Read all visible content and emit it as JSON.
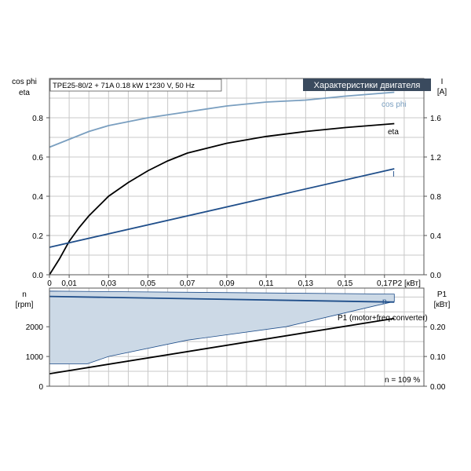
{
  "colors": {
    "cos_phi": "#7a9fc0",
    "eta": "#000000",
    "current": "#1f4e8a",
    "speed": "#1f4e8a",
    "p1": "#000000",
    "speed_band_fill": "#ccd9e6",
    "speed_band_edge": "#1f4e8a",
    "grid": "#c8c8c8",
    "title_box_bg": "#3a4a5e",
    "title_box_text": "#ffffff"
  },
  "chart_data": [
    {
      "type": "line",
      "panel": "top",
      "title": "Характеристики двигателя",
      "subtitle": "TPE25-80/2 + 71A   0.18 kW   1*230 V, 50 Hz",
      "xlabel": "P2 [кВт]",
      "ylabel_left": [
        "cos phi",
        "eta"
      ],
      "ylabel_right": [
        "I",
        "[A]"
      ],
      "xlim": [
        0,
        0.19
      ],
      "ylim_left": [
        0,
        1
      ],
      "ylim_right": [
        0,
        2
      ],
      "x_ticks": [
        "0",
        "0,01",
        "0,03",
        "0,05",
        "0,07",
        "0,09",
        "0,11",
        "0,13",
        "0,15",
        "0,17"
      ],
      "x_tick_values": [
        0,
        0.01,
        0.03,
        0.05,
        0.07,
        0.09,
        0.11,
        0.13,
        0.15,
        0.17
      ],
      "y_ticks_left": [
        "0.0",
        "0.2",
        "0.4",
        "0.6",
        "0.8"
      ],
      "y_tick_values_left": [
        0,
        0.2,
        0.4,
        0.6,
        0.8
      ],
      "y_ticks_right": [
        "0.0",
        "0.4",
        "0.8",
        "1.2",
        "1.6"
      ],
      "y_tick_values_right": [
        0,
        0.4,
        0.8,
        1.2,
        1.6
      ],
      "grid": true,
      "series": [
        {
          "name": "cos phi",
          "axis": "left",
          "x": [
            0,
            0.005,
            0.01,
            0.02,
            0.03,
            0.04,
            0.05,
            0.07,
            0.09,
            0.11,
            0.13,
            0.15,
            0.175
          ],
          "y": [
            0.65,
            0.67,
            0.69,
            0.73,
            0.76,
            0.78,
            0.8,
            0.83,
            0.86,
            0.88,
            0.89,
            0.91,
            0.93
          ]
        },
        {
          "name": "eta",
          "axis": "left",
          "x": [
            0.0,
            0.005,
            0.01,
            0.015,
            0.02,
            0.03,
            0.04,
            0.05,
            0.06,
            0.07,
            0.09,
            0.11,
            0.13,
            0.15,
            0.175
          ],
          "y": [
            0.0,
            0.08,
            0.17,
            0.24,
            0.3,
            0.4,
            0.47,
            0.53,
            0.58,
            0.62,
            0.67,
            0.705,
            0.73,
            0.75,
            0.77
          ]
        },
        {
          "name": "I",
          "axis": "right",
          "x": [
            0,
            0.175
          ],
          "y": [
            0.28,
            1.08
          ]
        }
      ]
    },
    {
      "type": "line",
      "panel": "bottom",
      "xlim": [
        0,
        0.19
      ],
      "ylabel_left": [
        "n",
        "[rpm]"
      ],
      "ylabel_right": [
        "P1",
        "[кВт]"
      ],
      "ylim_left": [
        0,
        3300
      ],
      "ylim_right": [
        0,
        0.33
      ],
      "y_ticks_left": [
        "0",
        "1000",
        "2000"
      ],
      "y_tick_values_left": [
        0,
        1000,
        2000
      ],
      "y_ticks_right": [
        "0.00",
        "0.10",
        "0.20"
      ],
      "y_tick_values_right": [
        0,
        0.1,
        0.2
      ],
      "grid": true,
      "annotation": "n = 109 %",
      "speed_band": {
        "x_upper": [
          0,
          0.175
        ],
        "y_upper": [
          3200,
          3100
        ],
        "x_lower": [
          0,
          0.019,
          0.03,
          0.07,
          0.12,
          0.165,
          0.175
        ],
        "y_lower": [
          750,
          750,
          1000,
          1550,
          2000,
          2700,
          2850
        ]
      },
      "series": [
        {
          "name": "n",
          "axis": "left",
          "x": [
            0,
            0.175
          ],
          "y": [
            3020,
            2830
          ]
        },
        {
          "name": "P1 (motor+freq.converter)",
          "axis": "right",
          "x": [
            0,
            0.175
          ],
          "y": [
            0.042,
            0.228
          ]
        }
      ]
    }
  ]
}
